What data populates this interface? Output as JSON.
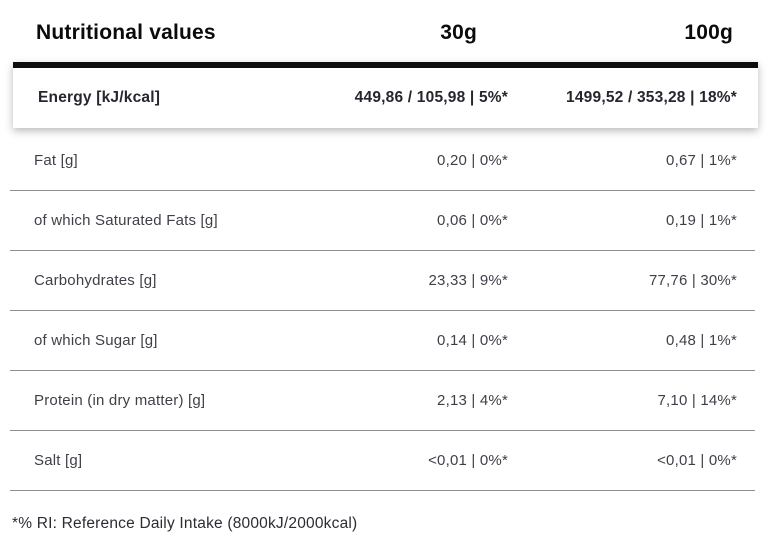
{
  "header": {
    "title": "Nutritional values",
    "col_30g": "30g",
    "col_100g": "100g"
  },
  "rows": [
    {
      "label": "Energy [kJ/kcal]",
      "v30": "449,86 / 105,98 | 5%*",
      "v100": "1499,52 / 353,28 | 18%*"
    },
    {
      "label": "Fat [g]",
      "v30": "0,20 | 0%*",
      "v100": "0,67 | 1%*"
    },
    {
      "label": "of which Saturated Fats [g]",
      "v30": "0,06 | 0%*",
      "v100": "0,19 | 1%*"
    },
    {
      "label": "Carbohydrates [g]",
      "v30": "23,33 | 9%*",
      "v100": "77,76 | 30%*"
    },
    {
      "label": "of which Sugar [g]",
      "v30": "0,14 | 0%*",
      "v100": "0,48 | 1%*"
    },
    {
      "label": "Protein (in dry matter) [g]",
      "v30": "2,13 | 4%*",
      "v100": "7,10 | 14%*"
    },
    {
      "label": "Salt [g]",
      "v30": "<0,01 | 0%*",
      "v100": "<0,01 | 0%*"
    }
  ],
  "footnote": "*% RI: Reference Daily Intake (8000kJ/2000kcal)",
  "colors": {
    "accent": "#0d0d10",
    "heading_text": "#0b0b0e",
    "energy_text": "#26262e",
    "row_text": "#3f3f48",
    "divider": "#909090",
    "footnote_text": "#2c2c33"
  }
}
